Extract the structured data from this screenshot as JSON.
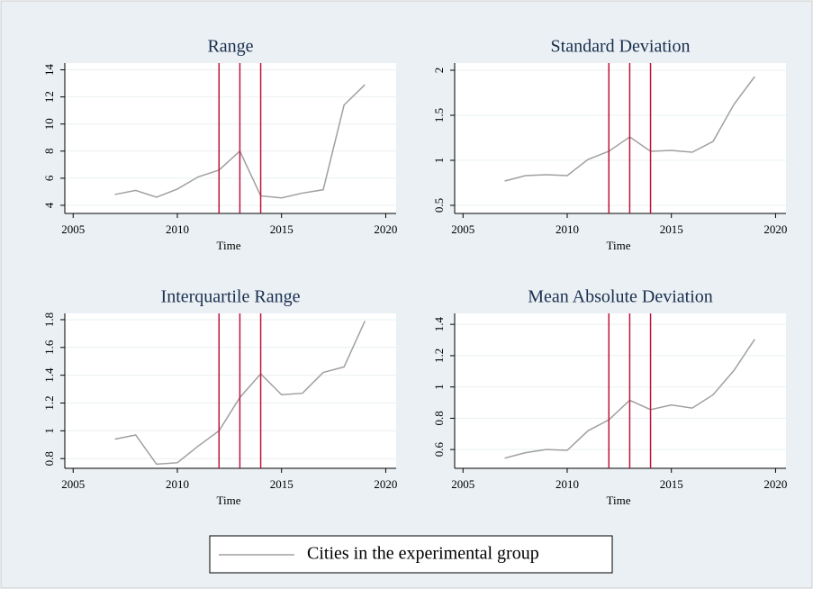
{
  "chart_data": [
    {
      "type": "line",
      "title": "Range",
      "xlabel": "Time",
      "x": [
        2007,
        2008,
        2009,
        2010,
        2011,
        2012,
        2013,
        2014,
        2015,
        2016,
        2017,
        2018,
        2019
      ],
      "series": [
        {
          "name": "Cities in the experimental group",
          "color": "#a0a0a0",
          "values": [
            4.8,
            5.1,
            4.6,
            5.2,
            6.1,
            6.6,
            8.0,
            4.7,
            4.55,
            4.9,
            5.15,
            11.4,
            12.9
          ]
        }
      ],
      "xlim": [
        2004.6,
        2020.5
      ],
      "ylim": [
        3.4,
        14.5
      ],
      "xticks": [
        2005,
        2010,
        2015,
        2020
      ],
      "yticks": [
        4,
        6,
        8,
        10,
        12,
        14
      ],
      "grid": true,
      "vlines": [
        2012,
        2013,
        2014
      ],
      "vline_color": "#c0143c"
    },
    {
      "type": "line",
      "title": "Standard Deviation",
      "xlabel": "Time",
      "x": [
        2007,
        2008,
        2009,
        2010,
        2011,
        2012,
        2013,
        2014,
        2015,
        2016,
        2017,
        2018,
        2019
      ],
      "series": [
        {
          "color": "#a0a0a0",
          "values": [
            0.77,
            0.83,
            0.84,
            0.83,
            1.01,
            1.1,
            1.26,
            1.1,
            1.11,
            1.09,
            1.21,
            1.62,
            1.93
          ]
        }
      ],
      "xlim": [
        2004.6,
        2020.5
      ],
      "ylim": [
        0.41,
        2.08
      ],
      "xticks": [
        2005,
        2010,
        2015,
        2020
      ],
      "yticks": [
        0.5,
        1,
        1.5,
        2
      ],
      "grid": true,
      "vlines": [
        2012,
        2013,
        2014
      ],
      "vline_color": "#c0143c"
    },
    {
      "type": "line",
      "title": "Interquartile Range",
      "xlabel": "Time",
      "x": [
        2007,
        2008,
        2009,
        2010,
        2011,
        2012,
        2013,
        2014,
        2015,
        2016,
        2017,
        2018,
        2019
      ],
      "series": [
        {
          "color": "#a0a0a0",
          "values": [
            0.94,
            0.97,
            0.76,
            0.77,
            0.89,
            1.0,
            1.24,
            1.41,
            1.26,
            1.27,
            1.42,
            1.46,
            1.79
          ]
        }
      ],
      "xlim": [
        2004.6,
        2020.5
      ],
      "ylim": [
        0.73,
        1.845
      ],
      "xticks": [
        2005,
        2010,
        2015,
        2020
      ],
      "yticks": [
        0.8,
        1,
        1.2,
        1.4,
        1.6,
        1.8
      ],
      "grid": true,
      "vlines": [
        2012,
        2013,
        2014
      ],
      "vline_color": "#c0143c"
    },
    {
      "type": "line",
      "title": "Mean Absolute Deviation",
      "xlabel": "Time",
      "x": [
        2007,
        2008,
        2009,
        2010,
        2011,
        2012,
        2013,
        2014,
        2015,
        2016,
        2017,
        2018,
        2019
      ],
      "series": [
        {
          "color": "#a0a0a0",
          "values": [
            0.545,
            0.58,
            0.6,
            0.595,
            0.72,
            0.79,
            0.915,
            0.855,
            0.885,
            0.865,
            0.95,
            1.105,
            1.305
          ]
        }
      ],
      "xlim": [
        2004.6,
        2020.5
      ],
      "ylim": [
        0.48,
        1.47
      ],
      "xticks": [
        2005,
        2010,
        2015,
        2020
      ],
      "yticks": [
        0.6,
        0.8,
        1,
        1.2,
        1.4
      ],
      "grid": true,
      "vlines": [
        2012,
        2013,
        2014
      ],
      "vline_color": "#c0143c"
    }
  ]
}
